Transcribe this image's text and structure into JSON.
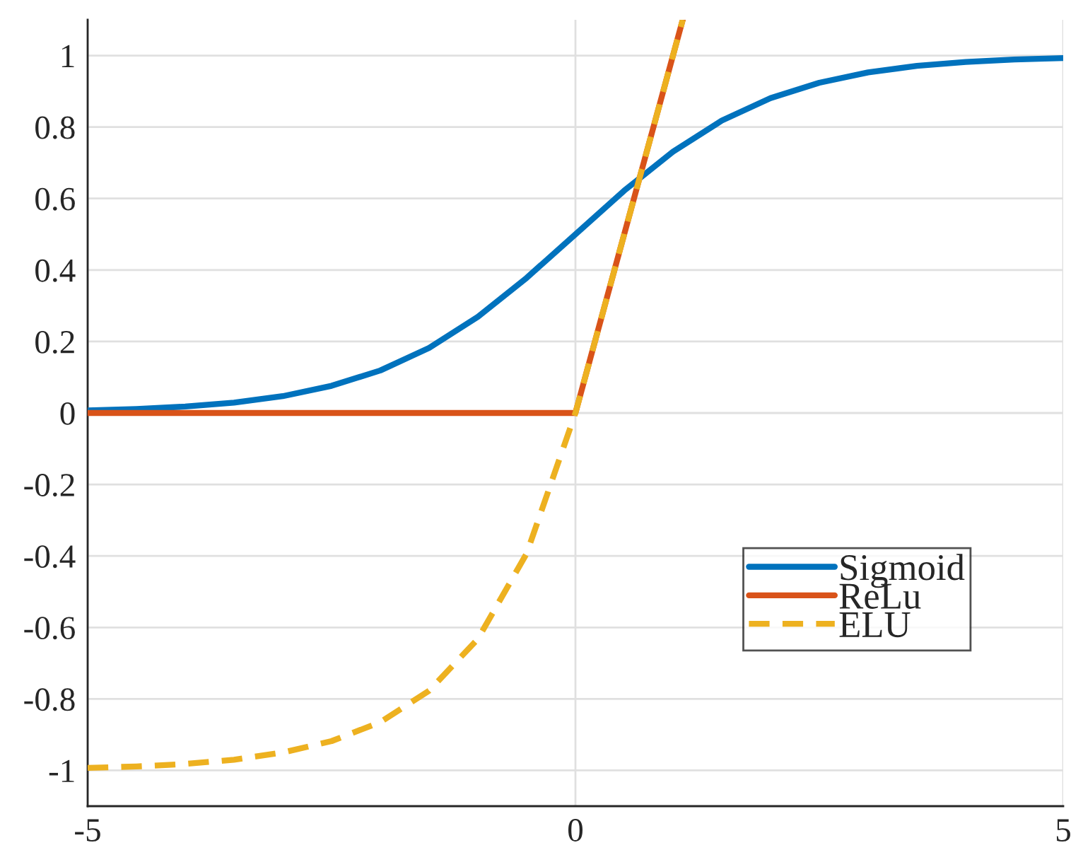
{
  "chart_data": {
    "type": "line",
    "xlim": [
      -5,
      5
    ],
    "xticks": [
      {
        "value": -5,
        "label": "-5"
      },
      0,
      5
    ],
    "ylim": [
      -1.1,
      1.1
    ],
    "yticks": [
      {
        "value": -1,
        "label": "-1"
      },
      {
        "value": -0.8,
        "label": "-0.8"
      },
      {
        "value": -0.6,
        "label": "-0.6"
      },
      {
        "value": -0.4,
        "label": "-0.4"
      },
      {
        "value": -0.2,
        "label": "-0.2"
      },
      0,
      0.2,
      0.4,
      0.6,
      0.8,
      1
    ],
    "grid": true,
    "legend": "lower right",
    "series": [
      {
        "name": "Sigmoid",
        "color": "#0072bd",
        "line_style": "solid",
        "x": [
          -5,
          -4.5,
          -4,
          -3.5,
          -3,
          -2.5,
          -2,
          -1.5,
          -1,
          -0.5,
          0,
          0.5,
          1,
          1.5,
          2,
          2.5,
          3,
          3.5,
          4,
          4.5,
          5
        ],
        "values": [
          0.007,
          0.011,
          0.018,
          0.029,
          0.047,
          0.076,
          0.119,
          0.182,
          0.269,
          0.378,
          0.5,
          0.622,
          0.731,
          0.818,
          0.881,
          0.924,
          0.953,
          0.971,
          0.982,
          0.989,
          0.993
        ]
      },
      {
        "name": "ReLu",
        "color": "#d95319",
        "line_style": "solid",
        "x": [
          -5,
          0,
          1.1
        ],
        "values": [
          0,
          0,
          1.1
        ]
      },
      {
        "name": "ELU",
        "color": "#edb120",
        "line_style": "dashed",
        "x": [
          -5,
          -4.5,
          -4,
          -3.5,
          -3,
          -2.5,
          -2,
          -1.5,
          -1,
          -0.5,
          0,
          1.1
        ],
        "values": [
          -0.993,
          -0.989,
          -0.982,
          -0.97,
          -0.95,
          -0.918,
          -0.865,
          -0.777,
          -0.632,
          -0.393,
          0,
          1.1
        ]
      }
    ]
  }
}
